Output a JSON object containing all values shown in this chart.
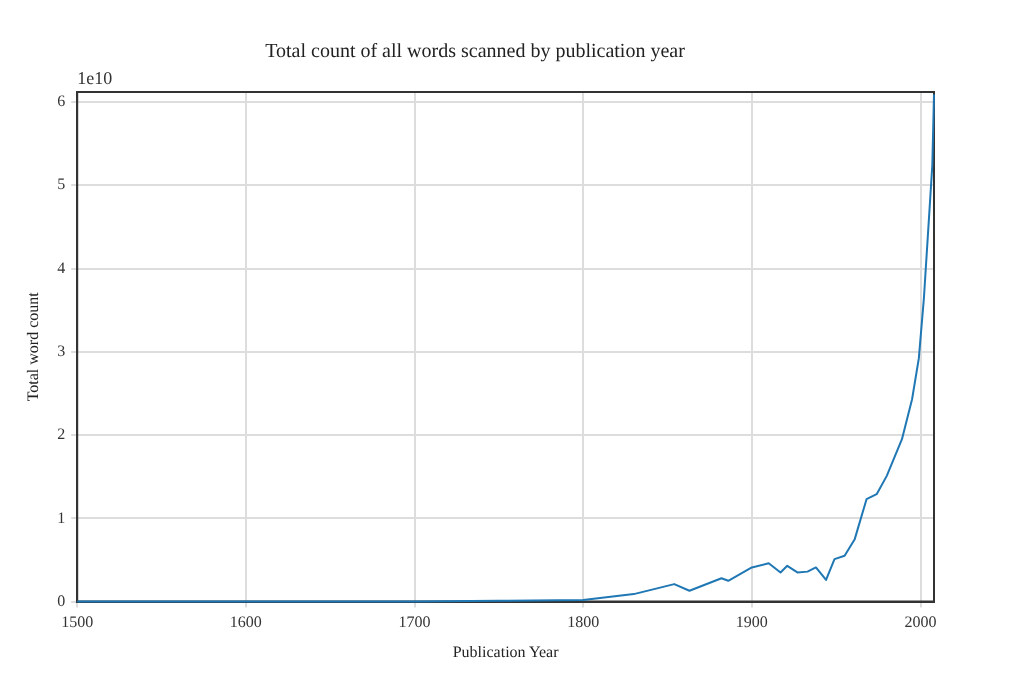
{
  "chart_data": {
    "type": "line",
    "title": "Total count of all words scanned by publication year",
    "xlabel": "Publication Year",
    "ylabel": "Total word count",
    "annotations": [
      "1e10"
    ],
    "x": [
      1500,
      1600,
      1700,
      1750,
      1800,
      1830,
      1854,
      1863,
      1882,
      1886,
      1900,
      1910,
      1917,
      1921,
      1927,
      1933,
      1938,
      1944,
      1949,
      1955,
      1961,
      1968,
      1974,
      1980,
      1989,
      1995,
      1999,
      2002,
      2005,
      2007,
      2008
    ],
    "series": [
      {
        "color": "#1f77b4",
        "values": [
          0,
          0,
          0,
          0.01,
          0.02,
          0.09,
          0.21,
          0.13,
          0.28,
          0.25,
          0.41,
          0.46,
          0.35,
          0.43,
          0.35,
          0.36,
          0.41,
          0.26,
          0.51,
          0.55,
          0.75,
          1.23,
          1.29,
          1.51,
          1.95,
          2.43,
          2.92,
          3.64,
          4.6,
          5.24,
          6.09
        ]
      }
    ],
    "xlim": [
      1500,
      2008
    ],
    "xticks": [
      1500,
      1600,
      1700,
      1800,
      1900,
      2000
    ],
    "ylim": [
      0,
      6.12
    ],
    "yticks": [
      0,
      1,
      2,
      3,
      4,
      5,
      6
    ],
    "grid": true,
    "legend": false,
    "marker": "none",
    "line_style": "solid"
  }
}
